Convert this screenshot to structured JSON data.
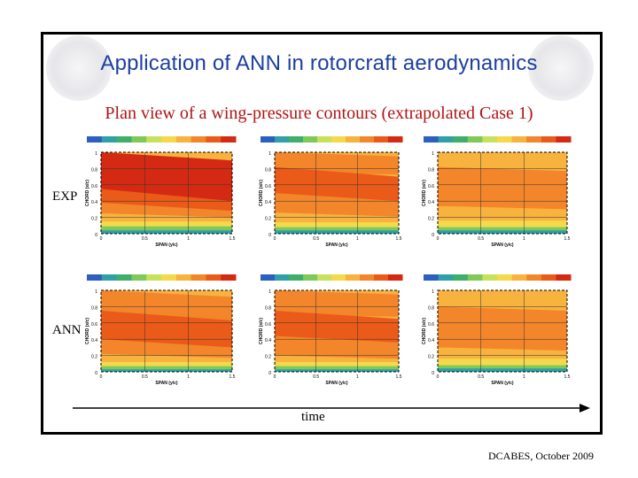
{
  "slide": {
    "title": "Application of ANN in rotorcraft aerodynamics",
    "subtitle": "Plan view of a wing-pressure contours (extrapolated Case 1)",
    "row_labels": {
      "exp": "EXP",
      "ann": "ANN"
    },
    "time_label": "time",
    "footer": "DCABES, October 2009"
  },
  "colors": {
    "title": "#1c3fa0",
    "subtitle": "#b01515",
    "contour_palette": [
      "#d42a14",
      "#ea5a18",
      "#f3862a",
      "#f8b23e",
      "#f5d94c",
      "#c8e05a",
      "#7fc95a",
      "#3fae6a",
      "#2f9fa8",
      "#2b5fc0"
    ]
  },
  "panels": [
    {
      "id": "exp-1",
      "xlabel": "SPAN (y/c)",
      "ylabel": "CHORD (x/c)",
      "xticks": [
        "0",
        "0.5",
        "1",
        "1.5"
      ],
      "yticks": [
        "1",
        "0.8",
        "0.6",
        "0.4",
        "0.2",
        "0"
      ]
    },
    {
      "id": "exp-2",
      "xlabel": "SPAN (y/c)",
      "ylabel": "CHORD (x/c)",
      "xticks": [
        "0",
        "0.5",
        "1",
        "1.5"
      ],
      "yticks": [
        "1",
        "0.8",
        "0.6",
        "0.4",
        "0.2",
        "0"
      ]
    },
    {
      "id": "exp-3",
      "xlabel": "SPAN (y/c)",
      "ylabel": "CHORD (x/c)",
      "xticks": [
        "0",
        "0.5",
        "1",
        "1.5"
      ],
      "yticks": [
        "1",
        "0.8",
        "0.6",
        "0.4",
        "0.2",
        "0"
      ]
    },
    {
      "id": "ann-1",
      "xlabel": "SPAN (y/c)",
      "ylabel": "CHORD (x/c)",
      "xticks": [
        "0",
        "0.5",
        "1",
        "1.5"
      ],
      "yticks": [
        "1",
        "0.8",
        "0.6",
        "0.4",
        "0.2",
        "0"
      ]
    },
    {
      "id": "ann-2",
      "xlabel": "SPAN (y/c)",
      "ylabel": "CHORD (x/c)",
      "xticks": [
        "0",
        "0.5",
        "1",
        "1.5"
      ],
      "yticks": [
        "1",
        "0.8",
        "0.6",
        "0.4",
        "0.2",
        "0"
      ]
    },
    {
      "id": "ann-3",
      "xlabel": "SPAN (y/c)",
      "ylabel": "CHORD (x/c)",
      "xticks": [
        "0",
        "0.5",
        "1",
        "1.5"
      ],
      "yticks": [
        "1",
        "0.8",
        "0.6",
        "0.4",
        "0.2",
        "0"
      ]
    }
  ]
}
